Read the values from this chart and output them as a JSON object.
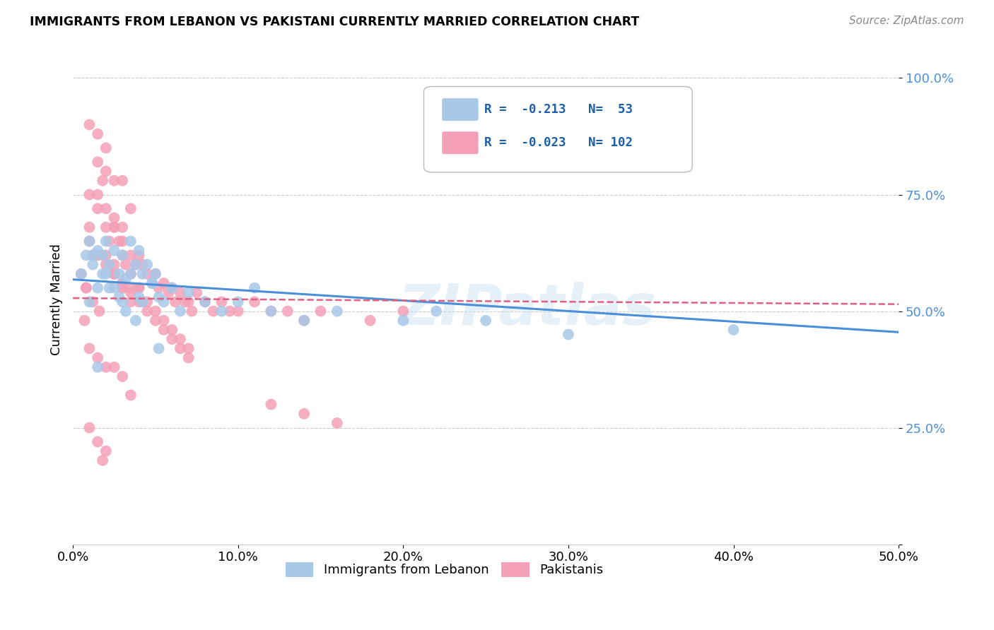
{
  "title": "IMMIGRANTS FROM LEBANON VS PAKISTANI CURRENTLY MARRIED CORRELATION CHART",
  "source": "Source: ZipAtlas.com",
  "ylabel": "Currently Married",
  "yticks": [
    0.0,
    0.25,
    0.5,
    0.75,
    1.0
  ],
  "ytick_labels": [
    "",
    "25.0%",
    "50.0%",
    "75.0%",
    "100.0%"
  ],
  "xticks": [
    0.0,
    0.1,
    0.2,
    0.3,
    0.4,
    0.5
  ],
  "watermark": "ZIPatlas",
  "blue_color": "#a8c8e8",
  "pink_color": "#f4a0b8",
  "blue_line_color": "#4a90d9",
  "pink_line_color": "#e06080",
  "legend_text_color": "#1a5fa8",
  "blue_scatter_x": [
    0.005,
    0.008,
    0.01,
    0.01,
    0.012,
    0.015,
    0.015,
    0.018,
    0.02,
    0.02,
    0.022,
    0.025,
    0.025,
    0.028,
    0.03,
    0.03,
    0.032,
    0.035,
    0.035,
    0.038,
    0.04,
    0.04,
    0.042,
    0.045,
    0.048,
    0.05,
    0.052,
    0.055,
    0.06,
    0.065,
    0.07,
    0.08,
    0.09,
    0.1,
    0.11,
    0.12,
    0.14,
    0.16,
    0.2,
    0.22,
    0.25,
    0.3,
    0.4,
    0.012,
    0.018,
    0.022,
    0.028,
    0.032,
    0.038,
    0.042,
    0.048,
    0.052,
    0.015
  ],
  "blue_scatter_y": [
    0.58,
    0.62,
    0.65,
    0.52,
    0.6,
    0.63,
    0.55,
    0.62,
    0.65,
    0.58,
    0.6,
    0.63,
    0.55,
    0.58,
    0.62,
    0.52,
    0.57,
    0.65,
    0.58,
    0.6,
    0.63,
    0.53,
    0.58,
    0.6,
    0.56,
    0.58,
    0.53,
    0.52,
    0.55,
    0.5,
    0.54,
    0.52,
    0.5,
    0.52,
    0.55,
    0.5,
    0.48,
    0.5,
    0.48,
    0.5,
    0.48,
    0.45,
    0.46,
    0.62,
    0.58,
    0.55,
    0.53,
    0.5,
    0.48,
    0.52,
    0.56,
    0.42,
    0.38
  ],
  "pink_scatter_x": [
    0.005,
    0.008,
    0.01,
    0.01,
    0.012,
    0.015,
    0.015,
    0.018,
    0.02,
    0.02,
    0.022,
    0.025,
    0.025,
    0.028,
    0.03,
    0.03,
    0.032,
    0.035,
    0.035,
    0.038,
    0.04,
    0.04,
    0.042,
    0.045,
    0.048,
    0.05,
    0.052,
    0.055,
    0.058,
    0.06,
    0.062,
    0.065,
    0.068,
    0.07,
    0.072,
    0.075,
    0.08,
    0.085,
    0.09,
    0.095,
    0.1,
    0.11,
    0.12,
    0.13,
    0.14,
    0.15,
    0.18,
    0.2,
    0.01,
    0.015,
    0.02,
    0.025,
    0.03,
    0.01,
    0.015,
    0.02,
    0.01,
    0.015,
    0.02,
    0.025,
    0.03,
    0.035,
    0.015,
    0.02,
    0.025,
    0.12,
    0.14,
    0.16,
    0.025,
    0.03,
    0.035,
    0.01,
    0.015,
    0.02,
    0.025,
    0.03,
    0.035,
    0.04,
    0.045,
    0.05,
    0.055,
    0.06,
    0.065,
    0.07,
    0.03,
    0.035,
    0.04,
    0.045,
    0.05,
    0.055,
    0.06,
    0.065,
    0.07,
    0.02,
    0.025,
    0.03,
    0.035,
    0.008,
    0.012,
    0.016,
    0.007,
    0.018
  ],
  "pink_scatter_y": [
    0.58,
    0.55,
    0.75,
    0.68,
    0.62,
    0.82,
    0.72,
    0.78,
    0.68,
    0.62,
    0.65,
    0.68,
    0.6,
    0.65,
    0.65,
    0.55,
    0.6,
    0.62,
    0.55,
    0.6,
    0.62,
    0.55,
    0.6,
    0.58,
    0.56,
    0.58,
    0.55,
    0.56,
    0.54,
    0.55,
    0.52,
    0.54,
    0.52,
    0.52,
    0.5,
    0.54,
    0.52,
    0.5,
    0.52,
    0.5,
    0.5,
    0.52,
    0.5,
    0.5,
    0.48,
    0.5,
    0.48,
    0.5,
    0.9,
    0.88,
    0.85,
    0.7,
    0.68,
    0.42,
    0.4,
    0.38,
    0.25,
    0.22,
    0.2,
    0.38,
    0.36,
    0.32,
    0.75,
    0.72,
    0.68,
    0.3,
    0.28,
    0.26,
    0.58,
    0.55,
    0.52,
    0.65,
    0.62,
    0.6,
    0.58,
    0.56,
    0.54,
    0.52,
    0.5,
    0.48,
    0.46,
    0.44,
    0.42,
    0.4,
    0.62,
    0.58,
    0.55,
    0.52,
    0.5,
    0.48,
    0.46,
    0.44,
    0.42,
    0.8,
    0.78,
    0.78,
    0.72,
    0.55,
    0.52,
    0.5,
    0.48,
    0.18
  ],
  "blue_trend_x": [
    0.0,
    0.5
  ],
  "blue_trend_y": [
    0.568,
    0.455
  ],
  "pink_trend_x": [
    0.0,
    0.5
  ],
  "pink_trend_y": [
    0.528,
    0.515
  ],
  "xlim": [
    0.0,
    0.5
  ],
  "ylim": [
    0.0,
    1.05
  ],
  "legend_r1_text": "R =  -0.213   N=  53",
  "legend_r2_text": "R =  -0.023   N= 102",
  "legend_label1": "Immigrants from Lebanon",
  "legend_label2": "Pakistanis"
}
